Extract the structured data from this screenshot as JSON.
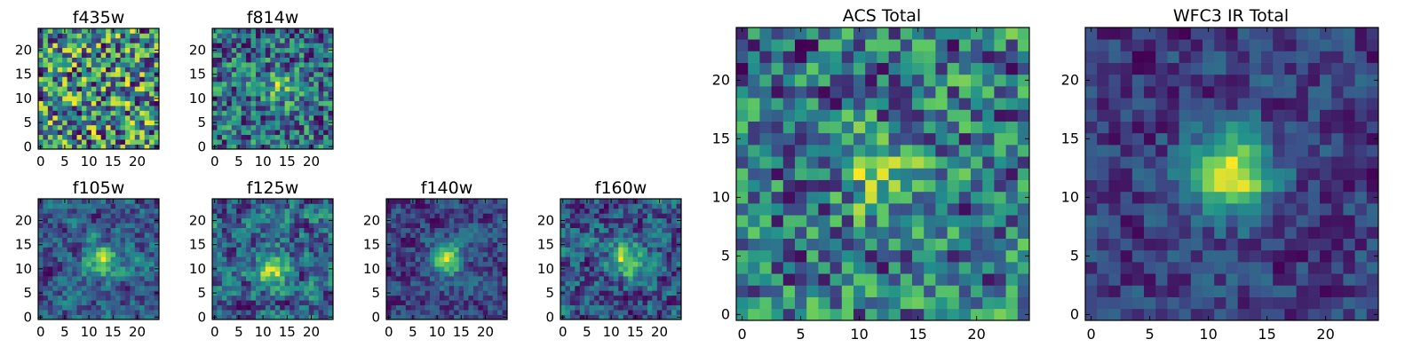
{
  "figure": {
    "background": "#ffffff"
  },
  "colormap": {
    "name": "viridis",
    "stops": [
      "#440154",
      "#3b528b",
      "#21918c",
      "#5ec962",
      "#fde725"
    ]
  },
  "chart_data": [
    {
      "type": "heatmap",
      "title": "f435w",
      "grid_size": 25,
      "x_ticks": [
        0,
        5,
        10,
        15,
        20
      ],
      "y_ticks": [
        0,
        5,
        10,
        15,
        20
      ],
      "source_center": [
        12,
        12
      ],
      "source_strength": 0.0,
      "noise_level": 1.0,
      "smoothness": 0.0,
      "seed": 435
    },
    {
      "type": "heatmap",
      "title": "f814w",
      "grid_size": 25,
      "x_ticks": [
        0,
        5,
        10,
        15,
        20
      ],
      "y_ticks": [
        0,
        5,
        10,
        15,
        20
      ],
      "source_center": [
        13,
        12
      ],
      "source_strength": 0.35,
      "noise_level": 0.9,
      "smoothness": 0.15,
      "seed": 814
    },
    {
      "type": "heatmap",
      "title": "f105w",
      "grid_size": 25,
      "x_ticks": [
        0,
        5,
        10,
        15,
        20
      ],
      "y_ticks": [
        0,
        5,
        10,
        15,
        20
      ],
      "source_center": [
        13,
        12
      ],
      "source_strength": 0.45,
      "noise_level": 0.7,
      "smoothness": 0.55,
      "seed": 105
    },
    {
      "type": "heatmap",
      "title": "f125w",
      "grid_size": 25,
      "x_ticks": [
        0,
        5,
        10,
        15,
        20
      ],
      "y_ticks": [
        0,
        5,
        10,
        15,
        20
      ],
      "source_center": [
        12,
        10
      ],
      "source_strength": 0.45,
      "noise_level": 0.7,
      "smoothness": 0.5,
      "seed": 125
    },
    {
      "type": "heatmap",
      "title": "f140w",
      "grid_size": 25,
      "x_ticks": [
        0,
        5,
        10,
        15,
        20
      ],
      "y_ticks": [
        0,
        5,
        10,
        15,
        20
      ],
      "source_center": [
        12,
        12
      ],
      "source_strength": 0.75,
      "noise_level": 0.7,
      "smoothness": 0.45,
      "seed": 140
    },
    {
      "type": "heatmap",
      "title": "f160w",
      "grid_size": 25,
      "x_ticks": [
        0,
        5,
        10,
        15,
        20
      ],
      "y_ticks": [
        0,
        5,
        10,
        15,
        20
      ],
      "source_center": [
        13,
        12
      ],
      "source_strength": 0.6,
      "noise_level": 0.75,
      "smoothness": 0.45,
      "seed": 160
    },
    {
      "type": "heatmap",
      "title": "ACS Total",
      "grid_size": 25,
      "x_ticks": [
        0,
        5,
        10,
        15,
        20
      ],
      "y_ticks": [
        0,
        5,
        10,
        15,
        20
      ],
      "source_center": [
        12,
        12
      ],
      "source_strength": 0.35,
      "noise_level": 0.8,
      "smoothness": 0.25,
      "seed": 999
    },
    {
      "type": "heatmap",
      "title": "WFC3 IR Total",
      "grid_size": 25,
      "x_ticks": [
        0,
        5,
        10,
        15,
        20
      ],
      "y_ticks": [
        0,
        5,
        10,
        15,
        20
      ],
      "source_center": [
        12,
        12
      ],
      "source_strength": 0.85,
      "noise_level": 0.55,
      "smoothness": 0.35,
      "seed": 777
    }
  ]
}
